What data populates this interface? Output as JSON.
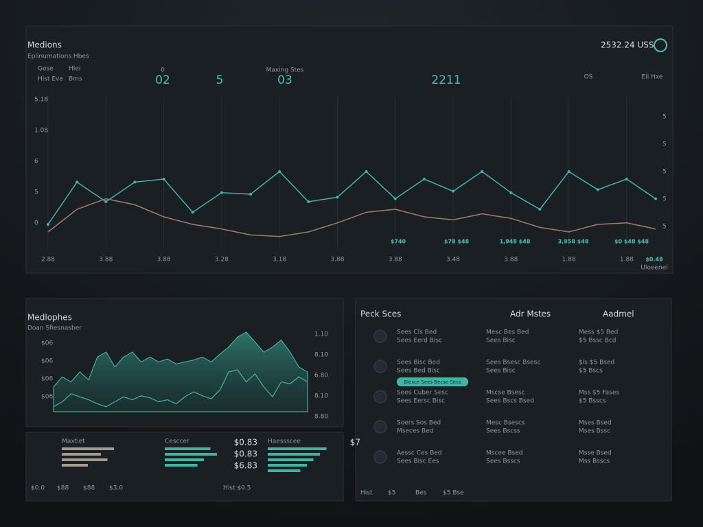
{
  "header": {
    "title": "Medions",
    "subtitle": "Eplinumations Hbes",
    "price": "2532.24 USS"
  },
  "top_legend": [
    "Gose",
    "Hlei",
    "Hist Eve",
    "Bms"
  ],
  "top_stats": [
    {
      "label": "0",
      "value": "02"
    },
    {
      "value": "5"
    },
    {
      "label": "Maxing Stes",
      "value": "03"
    },
    {
      "value": "2211"
    },
    {
      "label": "OS"
    },
    {
      "label": "Eil Hxe"
    }
  ],
  "main_chart": {
    "type": "line",
    "categories": [
      "2.88",
      null,
      "3.88",
      null,
      "3.88",
      null,
      "3.28",
      null,
      "3.18",
      null,
      "3.88",
      null,
      "3.88",
      null,
      "3.48",
      null,
      "3.88",
      null,
      "1.88",
      null,
      "1.88",
      null
    ],
    "series": [
      {
        "color": "#3fb6a3",
        "values": [
          1.5,
          4.3,
          3.0,
          4.3,
          4.5,
          2.3,
          3.6,
          3.5,
          5.0,
          3.0,
          3.3,
          5.0,
          3.2,
          4.5,
          3.7,
          5.0,
          3.6,
          2.5,
          5.0,
          3.8,
          4.5,
          3.2
        ]
      },
      {
        "color": "#a07c70",
        "values": [
          1.0,
          2.5,
          3.2,
          2.8,
          2.0,
          1.5,
          1.2,
          0.8,
          0.7,
          1.0,
          1.6,
          2.3,
          2.5,
          2.0,
          1.8,
          2.2,
          1.9,
          1.3,
          1.0,
          1.5,
          1.6,
          1.2
        ]
      }
    ],
    "ylim": [
      0,
      10
    ],
    "left_labels": [
      "5.18",
      "1.08",
      "6",
      "5",
      "0"
    ],
    "right_labels": [
      "5",
      "5",
      "5",
      "5",
      "5"
    ],
    "readouts": [
      "$740",
      "$78 $48",
      "1,948 $48",
      "3,958 $48",
      "$0 $48 $48"
    ],
    "corner": {
      "value": "$0.48",
      "label": "Uloeenel"
    }
  },
  "area_chart": {
    "type": "area",
    "title": "Medlophes",
    "subtitle": "Doan Sfiesnasber",
    "left_labels": [
      "$06",
      "$06",
      "$06",
      "$06"
    ],
    "right_labels": [
      "1.10",
      "8.10",
      "6.80",
      "8.10",
      "8.80"
    ],
    "ylim": [
      0,
      10
    ],
    "series": [
      {
        "color": "#2f7d70",
        "values": [
          2.5,
          3.5,
          3.0,
          4.0,
          3.2,
          5.5,
          6.0,
          4.5,
          5.5,
          6.0,
          5.0,
          5.5,
          5.0,
          5.3,
          4.8,
          5.0,
          5.2,
          5.5,
          5.0,
          5.8,
          6.5,
          7.5,
          8.0,
          7.0,
          6.0,
          6.5,
          7.2,
          6.0,
          4.5,
          4.0
        ]
      },
      {
        "color": "#3fb6a3",
        "values": [
          0.5,
          1.0,
          1.8,
          1.5,
          1.2,
          0.8,
          0.5,
          1.0,
          1.5,
          1.2,
          1.6,
          1.4,
          1.0,
          1.2,
          0.8,
          1.5,
          2.0,
          1.6,
          1.3,
          2.2,
          4.0,
          4.2,
          3.0,
          3.8,
          2.5,
          1.5,
          3.0,
          2.8,
          3.5,
          3.0
        ]
      }
    ]
  },
  "bar_panel": {
    "xlim": [
      0,
      10
    ],
    "groups": [
      {
        "label": "Maxtiet",
        "color": "#a59a8e",
        "bars": [
          8,
          6,
          7,
          4
        ]
      },
      {
        "label": "Cesccer",
        "color": "#3fb6a3",
        "bars": [
          7,
          8,
          6,
          5
        ],
        "amounts": [
          "$0.83",
          "$0.83",
          "$6.83"
        ]
      },
      {
        "label": "Haessscee",
        "color": "#3fb6a3",
        "bars": [
          9,
          8,
          7,
          6,
          5
        ],
        "amounts": [
          "$7"
        ]
      }
    ],
    "footer": [
      "$0.0",
      "$88",
      "$88",
      "$3.0",
      "Hist $0.5"
    ]
  },
  "list_panel": {
    "columns": [
      {
        "title": "Peck Sces",
        "rows": [
          [
            "Sees Cls Bed",
            "Sees Eerd Bisc"
          ],
          [
            "Sees Bisc Bed",
            "Sees Bed Bisc"
          ],
          [
            "Sees Cuber Sesc",
            "Sees Eersc Bisc"
          ],
          [
            "Soers Sos Bed",
            "Mseces Bed"
          ],
          [
            "Aessc Ces Bed",
            "Sees Bisc Ees"
          ]
        ]
      },
      {
        "title": "Adr Mstes",
        "rows": [
          [
            "Mesc Bes Bed",
            "Sees Bisc"
          ],
          [
            "Sees Bsesc Bsesc",
            "Sees Bisc"
          ],
          [
            "Mscse Bsesc",
            "Sees Bscs Bsed"
          ],
          [
            "Mesc Bsescs",
            "Sees Bscss"
          ],
          [
            "Mscee Bsed",
            "Sees Bsscs"
          ]
        ]
      },
      {
        "title": "Aadmel",
        "rows": [
          [
            "Mess $5 Bed",
            "$5 Bssc Bcd"
          ],
          [
            "$ls $5 Bsed",
            "$5 Bscs"
          ],
          [
            "Mss $5 Fases",
            "$5 Bsscs"
          ],
          [
            "Mses Bsed",
            "Mses Bssc"
          ],
          [
            "Msse Bsed",
            "Mss Bsscs"
          ]
        ]
      }
    ],
    "button": "Blesce Sees Becse Secs",
    "footer": [
      "Hist",
      "$5",
      "Bes",
      "$5 Bse"
    ]
  }
}
